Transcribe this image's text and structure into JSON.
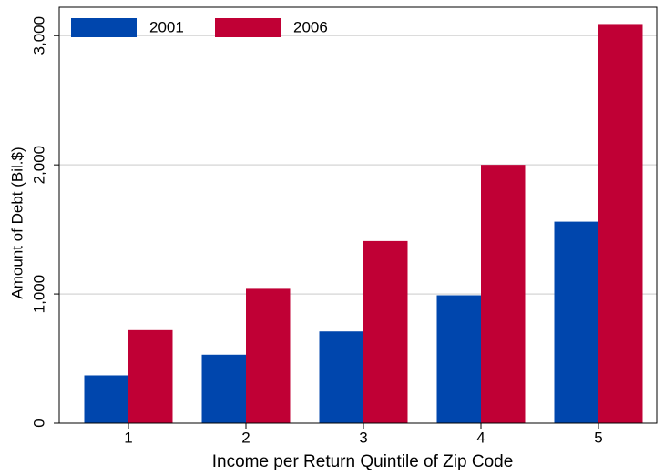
{
  "chart_data": {
    "type": "bar",
    "xlabel": "Income per Return Quintile of Zip Code",
    "ylabel": "Amount of Debt (Bil.$)",
    "categories": [
      "1",
      "2",
      "3",
      "4",
      "5"
    ],
    "series": [
      {
        "name": "2001",
        "color": "#0046ad",
        "values": [
          370,
          530,
          710,
          990,
          1560
        ]
      },
      {
        "name": "2006",
        "color": "#c00035",
        "values": [
          720,
          1040,
          1410,
          2000,
          3090
        ]
      }
    ],
    "ylim": [
      0,
      3220
    ],
    "yticks": [
      0,
      {
        "value": 1000,
        "label": "1,000"
      },
      {
        "value": 2000,
        "label": "2,000"
      },
      {
        "value": 3000,
        "label": "3,000"
      }
    ],
    "grid": true,
    "legend": "top-left"
  }
}
